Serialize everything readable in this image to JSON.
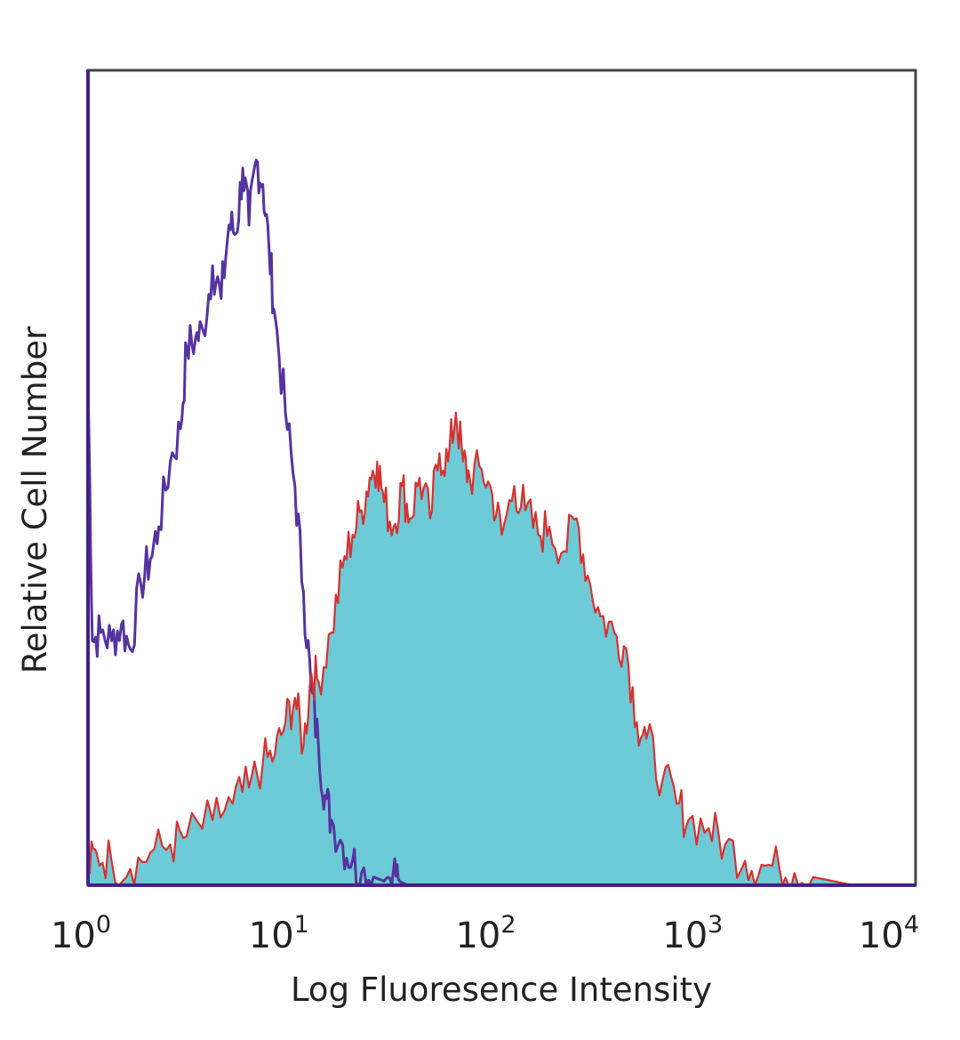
{
  "chart_data": {
    "type": "area",
    "x_scale": "log",
    "xlim": [
      1,
      10000
    ],
    "ylim": [
      0,
      100
    ],
    "grid": false,
    "legend": "none",
    "xlabel": "Log Fluoresence Intensity",
    "ylabel": "Relative Cell Number",
    "x_ticks": [
      {
        "base": "10",
        "exp": "0",
        "value": 1
      },
      {
        "base": "10",
        "exp": "1",
        "value": 10
      },
      {
        "base": "10",
        "exp": "2",
        "value": 100
      },
      {
        "base": "10",
        "exp": "3",
        "value": 1000
      },
      {
        "base": "10",
        "exp": "4",
        "value": 10000
      }
    ],
    "series": [
      {
        "role": "control",
        "style": "outline",
        "color": "#5533a0",
        "x": [
          1.0,
          1.05,
          1.15,
          1.3,
          1.45,
          1.6,
          1.8,
          2.0,
          2.2,
          2.5,
          2.8,
          3.0,
          3.3,
          3.6,
          4.0,
          4.4,
          4.8,
          5.2,
          5.6,
          6.0,
          6.5,
          7.0,
          7.5,
          8.0,
          9.0,
          10.0,
          11.0,
          12.0,
          13.0,
          14.0,
          15.0,
          17.0,
          19.0,
          21.0,
          24.0,
          27.0,
          30.0,
          32.0,
          35.0
        ],
        "y": [
          62,
          30,
          31,
          30,
          32,
          29,
          37,
          40,
          44,
          52,
          56,
          66,
          67,
          68,
          76,
          72,
          81,
          80,
          88,
          81,
          89,
          86,
          78,
          70,
          58,
          49,
          36,
          24,
          17,
          11,
          8,
          5,
          3,
          1.5,
          1,
          0.5,
          2,
          0.5,
          0
        ]
      },
      {
        "role": "stained",
        "style": "filled",
        "color": "#d93030",
        "fill": "#6ccbd6",
        "x": [
          1.0,
          1.1,
          1.3,
          1.6,
          2.0,
          2.5,
          3.0,
          4.0,
          5.0,
          6.0,
          7.0,
          8.0,
          9.0,
          10.0,
          11.0,
          12.0,
          13.0,
          15.0,
          17.0,
          19.0,
          21.0,
          23.0,
          25.0,
          27.0,
          30.0,
          33.0,
          36.0,
          40.0,
          45.0,
          50.0,
          55.0,
          60.0,
          65.0,
          70.0,
          80.0,
          90.0,
          100.0,
          115.0,
          130.0,
          150.0,
          170.0,
          200.0,
          230.0,
          260.0,
          300.0,
          350.0,
          400.0,
          450.0,
          500.0,
          600.0,
          700.0,
          800.0,
          1000.0,
          1200.0,
          1500.0,
          1800.0,
          2200.0,
          2600.0,
          3200.0,
          4000.0,
          5000.0
        ],
        "y": [
          2,
          4,
          3,
          2,
          4,
          5,
          6,
          8,
          10,
          12,
          15,
          16,
          20,
          23,
          17,
          26,
          25,
          31,
          39,
          43,
          46,
          50,
          52,
          47,
          44,
          49,
          45,
          50,
          45,
          53,
          52,
          58,
          52,
          50,
          51,
          48,
          43,
          49,
          46,
          43,
          44,
          41,
          45,
          38,
          33,
          31,
          29,
          20,
          18,
          13,
          10,
          8,
          7,
          5,
          3,
          2.5,
          2,
          1.5,
          1,
          0.5,
          0
        ]
      }
    ]
  }
}
